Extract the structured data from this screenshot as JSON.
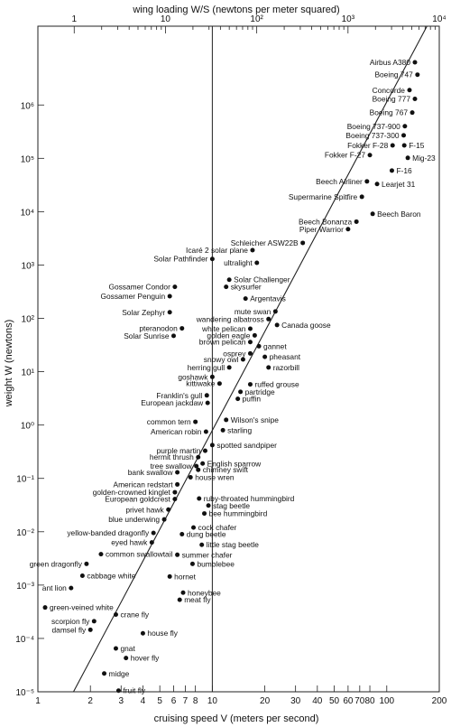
{
  "chart_data": {
    "type": "scatter",
    "title": "",
    "xlabel": "cruising speed V (meters per second)",
    "ylabel": "weight W (newtons)",
    "x2label": "wing loading W/S (newtons per meter squared)",
    "x_scale": "log",
    "y_scale": "log",
    "xlim": [
      1,
      200
    ],
    "ylim": [
      1e-05,
      30000000
    ],
    "x2lim": [
      0.4,
      10000
    ],
    "grid": false,
    "x_ticks": [
      "1",
      "2",
      "3",
      "4",
      "5",
      "6",
      "7",
      "8",
      "10",
      "20",
      "30",
      "40",
      "50",
      "60",
      "70",
      "80",
      "100",
      "200"
    ],
    "x2_ticks": [
      "1",
      "10",
      "10²",
      "10³",
      "10⁴"
    ],
    "y_ticks": [
      "10⁻⁵",
      "10⁻⁴",
      "10⁻³",
      "10⁻²",
      "10⁻¹",
      "10⁰",
      "10¹",
      "10²",
      "10³",
      "10⁴",
      "10⁵",
      "10⁶"
    ],
    "reference_line": {
      "x": 10
    },
    "trend_line": {
      "x": [
        1.6,
        170
      ],
      "y": [
        1e-05,
        30000000
      ]
    },
    "points": [
      {
        "name": "Airbus A380",
        "x": 145,
        "y": 6300000,
        "label_side": "left"
      },
      {
        "name": "Boeing 747",
        "x": 150,
        "y": 3700000,
        "label_side": "left"
      },
      {
        "name": "Concorde",
        "x": 135,
        "y": 1900000,
        "label_side": "left"
      },
      {
        "name": "Boeing 777",
        "x": 145,
        "y": 1300000,
        "label_side": "left"
      },
      {
        "name": "Boeing 767",
        "x": 140,
        "y": 720000,
        "label_side": "left"
      },
      {
        "name": "Boeing 737-900",
        "x": 127,
        "y": 400000,
        "label_side": "left"
      },
      {
        "name": "Boeing 737-300",
        "x": 125,
        "y": 270000,
        "label_side": "left"
      },
      {
        "name": "Fokker F-28",
        "x": 108,
        "y": 175000,
        "label_side": "left"
      },
      {
        "name": "Fokker F-27",
        "x": 80,
        "y": 115000,
        "label_side": "left"
      },
      {
        "name": "F-15",
        "x": 126,
        "y": 175000,
        "label_side": "right"
      },
      {
        "name": "Mig-23",
        "x": 132,
        "y": 102000,
        "label_side": "right"
      },
      {
        "name": "F-16",
        "x": 107,
        "y": 59000,
        "label_side": "right"
      },
      {
        "name": "Beech Airliner",
        "x": 77,
        "y": 37000,
        "label_side": "left"
      },
      {
        "name": "Learjet 31",
        "x": 88,
        "y": 33000,
        "label_side": "right"
      },
      {
        "name": "Supermarine Spitfire",
        "x": 72,
        "y": 19000,
        "label_side": "left"
      },
      {
        "name": "Beech Baron",
        "x": 83,
        "y": 9100,
        "label_side": "right"
      },
      {
        "name": "Beech Bonanza",
        "x": 67,
        "y": 6500,
        "label_side": "left"
      },
      {
        "name": "Piper Warrior",
        "x": 60,
        "y": 4700,
        "label_side": "left"
      },
      {
        "name": "Schleicher ASW22B",
        "x": 33,
        "y": 2600,
        "label_side": "left"
      },
      {
        "name": "Icaré 2 solar plane",
        "x": 17,
        "y": 1900,
        "label_side": "left"
      },
      {
        "name": "Solar Pathfinder",
        "x": 10,
        "y": 1300,
        "label_side": "left"
      },
      {
        "name": "ultralight",
        "x": 18,
        "y": 1100,
        "label_side": "left"
      },
      {
        "name": "Solar Challenger",
        "x": 12.5,
        "y": 530,
        "label_side": "right"
      },
      {
        "name": "skysurfer",
        "x": 12,
        "y": 390,
        "label_side": "right"
      },
      {
        "name": "Argentavis",
        "x": 15.5,
        "y": 235,
        "label_side": "right"
      },
      {
        "name": "Gossamer Condor",
        "x": 6.1,
        "y": 390,
        "label_side": "left"
      },
      {
        "name": "Gossamer Penguin",
        "x": 5.7,
        "y": 260,
        "label_side": "left"
      },
      {
        "name": "Solar Zephyr",
        "x": 5.7,
        "y": 130,
        "label_side": "left"
      },
      {
        "name": "pteranodon",
        "x": 6.7,
        "y": 65,
        "label_side": "left"
      },
      {
        "name": "Solar Sunrise",
        "x": 6.0,
        "y": 47,
        "label_side": "left"
      },
      {
        "name": "mute swan",
        "x": 23,
        "y": 135,
        "label_side": "left"
      },
      {
        "name": "wandering albatross",
        "x": 21,
        "y": 97,
        "label_side": "left"
      },
      {
        "name": "Canada goose",
        "x": 23.5,
        "y": 75,
        "label_side": "right"
      },
      {
        "name": "white pelican",
        "x": 16.5,
        "y": 64,
        "label_side": "left"
      },
      {
        "name": "golden eagle",
        "x": 17.5,
        "y": 48,
        "label_side": "left"
      },
      {
        "name": "brown pelican",
        "x": 16.5,
        "y": 36,
        "label_side": "left"
      },
      {
        "name": "gannet",
        "x": 18.5,
        "y": 30,
        "label_side": "right"
      },
      {
        "name": "osprey",
        "x": 16.5,
        "y": 22,
        "label_side": "left"
      },
      {
        "name": "pheasant",
        "x": 20,
        "y": 19,
        "label_side": "right"
      },
      {
        "name": "snowy owl",
        "x": 15,
        "y": 17,
        "label_side": "left"
      },
      {
        "name": "razorbill",
        "x": 21,
        "y": 12,
        "label_side": "right"
      },
      {
        "name": "herring gull",
        "x": 12.5,
        "y": 12,
        "label_side": "left"
      },
      {
        "name": "goshawk",
        "x": 10,
        "y": 8,
        "label_side": "left"
      },
      {
        "name": "kittiwake",
        "x": 11,
        "y": 6,
        "label_side": "left"
      },
      {
        "name": "ruffed grouse",
        "x": 16.5,
        "y": 5.8,
        "label_side": "right"
      },
      {
        "name": "partridge",
        "x": 14.5,
        "y": 4.2,
        "label_side": "right"
      },
      {
        "name": "Franklin's gull",
        "x": 9.3,
        "y": 3.6,
        "label_side": "left"
      },
      {
        "name": "puffin",
        "x": 14,
        "y": 3.1,
        "label_side": "right"
      },
      {
        "name": "European jackdaw",
        "x": 9.4,
        "y": 2.6,
        "label_side": "left"
      },
      {
        "name": "Wilson's snipe",
        "x": 12,
        "y": 1.25,
        "label_side": "right"
      },
      {
        "name": "common tern",
        "x": 8,
        "y": 1.15,
        "label_side": "left"
      },
      {
        "name": "starling",
        "x": 11.5,
        "y": 0.8,
        "label_side": "right"
      },
      {
        "name": "American robin",
        "x": 9.2,
        "y": 0.75,
        "label_side": "left"
      },
      {
        "name": "spotted sandpiper",
        "x": 10,
        "y": 0.42,
        "label_side": "right"
      },
      {
        "name": "purple martin",
        "x": 9.1,
        "y": 0.33,
        "label_side": "left"
      },
      {
        "name": "hermit thrush",
        "x": 8.3,
        "y": 0.25,
        "label_side": "left"
      },
      {
        "name": "English sparrow",
        "x": 8.8,
        "y": 0.19,
        "label_side": "right"
      },
      {
        "name": "tree swallow",
        "x": 8.1,
        "y": 0.17,
        "label_side": "left"
      },
      {
        "name": "chimney swift",
        "x": 8.3,
        "y": 0.145,
        "label_side": "right"
      },
      {
        "name": "bank swallow",
        "x": 6.3,
        "y": 0.13,
        "label_side": "left"
      },
      {
        "name": "house wren",
        "x": 7.5,
        "y": 0.105,
        "label_side": "right"
      },
      {
        "name": "American redstart",
        "x": 6.3,
        "y": 0.077,
        "label_side": "left"
      },
      {
        "name": "golden-crowned kinglet",
        "x": 6.1,
        "y": 0.055,
        "label_side": "left"
      },
      {
        "name": "European goldcrest",
        "x": 6.1,
        "y": 0.041,
        "label_side": "left"
      },
      {
        "name": "ruby-throated hummingbird",
        "x": 8.4,
        "y": 0.042,
        "label_side": "right"
      },
      {
        "name": "stag beetle",
        "x": 9.5,
        "y": 0.031,
        "label_side": "right"
      },
      {
        "name": "privet hawk",
        "x": 5.6,
        "y": 0.026,
        "label_side": "left"
      },
      {
        "name": "bee hummingbird",
        "x": 9.0,
        "y": 0.022,
        "label_side": "right"
      },
      {
        "name": "blue underwing",
        "x": 5.3,
        "y": 0.017,
        "label_side": "left"
      },
      {
        "name": "cock chafer",
        "x": 7.8,
        "y": 0.012,
        "label_side": "right"
      },
      {
        "name": "yellow-banded dragonfly",
        "x": 4.6,
        "y": 0.0095,
        "label_side": "left"
      },
      {
        "name": "dung beetle",
        "x": 6.7,
        "y": 0.009,
        "label_side": "right"
      },
      {
        "name": "eyed hawk",
        "x": 4.5,
        "y": 0.0063,
        "label_side": "left"
      },
      {
        "name": "little stag beetle",
        "x": 8.7,
        "y": 0.0057,
        "label_side": "right"
      },
      {
        "name": "common swallowtail",
        "x": 2.3,
        "y": 0.0038,
        "label_side": "right"
      },
      {
        "name": "summer chafer",
        "x": 6.3,
        "y": 0.0037,
        "label_side": "right"
      },
      {
        "name": "bumblebee",
        "x": 7.7,
        "y": 0.0025,
        "label_side": "right"
      },
      {
        "name": "green dragonfly",
        "x": 1.9,
        "y": 0.0025,
        "label_side": "left"
      },
      {
        "name": "cabbage white",
        "x": 1.8,
        "y": 0.0015,
        "label_side": "right"
      },
      {
        "name": "hornet",
        "x": 5.7,
        "y": 0.00145,
        "label_side": "right"
      },
      {
        "name": "ant lion",
        "x": 1.55,
        "y": 0.00088,
        "label_side": "left"
      },
      {
        "name": "honeybee",
        "x": 6.8,
        "y": 0.00072,
        "label_side": "right"
      },
      {
        "name": "meat fly",
        "x": 6.5,
        "y": 0.00053,
        "label_side": "right"
      },
      {
        "name": "green-veined white",
        "x": 1.1,
        "y": 0.00038,
        "label_side": "right"
      },
      {
        "name": "crane fly",
        "x": 2.8,
        "y": 0.00028,
        "label_side": "right"
      },
      {
        "name": "scorpion fly",
        "x": 2.1,
        "y": 0.00021,
        "label_side": "left"
      },
      {
        "name": "damsel fly",
        "x": 2.0,
        "y": 0.000145,
        "label_side": "left"
      },
      {
        "name": "house fly",
        "x": 4.0,
        "y": 0.000125,
        "label_side": "right"
      },
      {
        "name": "gnat",
        "x": 2.8,
        "y": 6.5e-05,
        "label_side": "right"
      },
      {
        "name": "hover fly",
        "x": 3.2,
        "y": 4.3e-05,
        "label_side": "right"
      },
      {
        "name": "midge",
        "x": 2.4,
        "y": 2.2e-05,
        "label_side": "right"
      },
      {
        "name": "fruit fly",
        "x": 2.9,
        "y": 1.05e-05,
        "label_side": "right"
      }
    ]
  }
}
